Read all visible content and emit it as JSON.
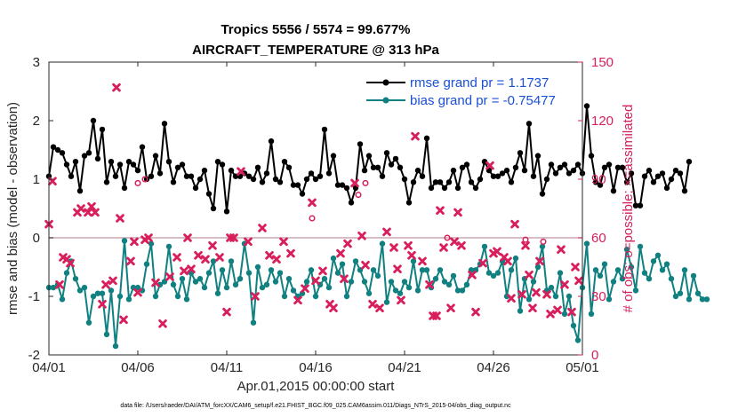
{
  "chart_data": {
    "type": "line",
    "title_line1": "Tropics 5556 / 5574 = 99.677%",
    "title_line2": "AIRCRAFT_TEMPERATURE @ 313 hPa",
    "xlabel": "Apr.01,2015 00:00:00 start",
    "ylabel_left": "rmse and bias (model - observation)",
    "ylabel_right": "# of obs: o=possible; ×=assimilated",
    "footer": "data file: /Users/raeder/DAI/ATM_forcXX/CAM6_setup/f.e21.FHIST_BGC.f09_025.CAM6assim.011/Diags_NTrS_2015-04/obs_diag_output.nc",
    "xlim": [
      0,
      30
    ],
    "ylim_left": [
      -2,
      3
    ],
    "ylim_right": [
      0,
      150
    ],
    "x_ticks": [
      0,
      5,
      10,
      15,
      20,
      25,
      30
    ],
    "x_tick_labels": [
      "04/01",
      "04/06",
      "04/11",
      "04/16",
      "04/21",
      "04/26",
      "05/01"
    ],
    "y_ticks_left": [
      -2,
      -1,
      0,
      1,
      2,
      3
    ],
    "y_tick_labels_left": [
      "-2",
      "-1",
      "0",
      "1",
      "2",
      "3"
    ],
    "y_ticks_right": [
      0,
      30,
      60,
      90,
      120,
      150
    ],
    "y_tick_labels_right": [
      "0",
      "30",
      "60",
      "90",
      "120",
      "150"
    ],
    "zero_line": 0,
    "legend": [
      {
        "label": "rmse grand pr = 1.1737",
        "color": "#000000"
      },
      {
        "label": "bias grand pr = -0.75477",
        "color": "#108080"
      }
    ],
    "colors": {
      "rmse": "#000000",
      "bias": "#108080",
      "obs": "#d81e5b",
      "zero": "#c8a8b0"
    },
    "x_step": 0.25,
    "series": [
      {
        "name": "rmse",
        "values": [
          1.05,
          1.55,
          1.5,
          1.45,
          1.25,
          1.05,
          1.3,
          0.8,
          1.4,
          1.45,
          2.0,
          1.35,
          1.85,
          0.95,
          1.3,
          1.05,
          1.25,
          0.85,
          1.3,
          1.25,
          1.15,
          1.55,
          1.0,
          1.05,
          1.4,
          1.1,
          1.95,
          1.3,
          0.95,
          1.2,
          1.25,
          1.05,
          1.05,
          0.85,
          1.0,
          1.15,
          0.75,
          0.5,
          1.3,
          1.25,
          0.45,
          1.15,
          1.05,
          1.05,
          1.1,
          1.05,
          1.0,
          1.2,
          0.95,
          1.1,
          1.65,
          1.0,
          0.95,
          1.3,
          1.2,
          0.9,
          0.9,
          0.75,
          1.0,
          1.1,
          1.0,
          1.05,
          1.85,
          1.1,
          1.4,
          0.9,
          0.9,
          0.85,
          0.6,
          0.85,
          1.6,
          1.15,
          1.4,
          1.2,
          1.2,
          1.05,
          1.45,
          1.25,
          1.35,
          1.2,
          1.0,
          0.6,
          0.95,
          1.15,
          1.05,
          1.7,
          0.85,
          0.95,
          0.95,
          0.85,
          0.95,
          1.15,
          0.85,
          1.2,
          1.25,
          0.95,
          0.85,
          1.0,
          1.3,
          1.15,
          1.05,
          1.05,
          1.1,
          1.15,
          0.95,
          1.2,
          1.45,
          1.15,
          1.95,
          1.05,
          1.4,
          0.75,
          1.0,
          1.25,
          1.1,
          1.2,
          1.25,
          1.1,
          1.15,
          1.25,
          1.1,
          2.25,
          1.4,
          0.95,
          0.9,
          1.2,
          1.25,
          0.8,
          1.2,
          1.2,
          0.95,
          1.1,
          0.55,
          0.55,
          1.05,
          1.15,
          0.95,
          1.05,
          1.1,
          0.85,
          1.0,
          1.15,
          1.1,
          0.8,
          1.3
        ]
      },
      {
        "name": "bias",
        "values": [
          -0.85,
          -0.85,
          -0.8,
          -1.05,
          -0.6,
          -0.4,
          -0.7,
          -0.9,
          -0.85,
          -1.45,
          -1.0,
          -0.95,
          -0.95,
          -1.65,
          -0.9,
          -1.85,
          -1.0,
          -0.05,
          -1.05,
          -0.85,
          -0.85,
          -0.9,
          -0.45,
          -0.1,
          -1.0,
          -0.8,
          -0.75,
          -0.15,
          -0.8,
          -1.0,
          -0.7,
          -1.05,
          -0.6,
          -0.75,
          -0.7,
          -0.85,
          -0.6,
          -0.4,
          -0.95,
          -0.55,
          -0.85,
          -0.4,
          -0.8,
          -0.7,
          -0.1,
          -0.6,
          -1.45,
          -0.5,
          -0.85,
          -0.8,
          -0.55,
          -0.75,
          -0.6,
          -1.0,
          -0.7,
          -0.9,
          -1.0,
          -0.95,
          -0.75,
          -0.55,
          -1.0,
          -0.8,
          -0.7,
          -0.85,
          -0.35,
          -0.6,
          -0.45,
          -1.0,
          -0.75,
          -0.4,
          -0.55,
          -0.75,
          -0.95,
          -0.55,
          -0.65,
          -0.1,
          -1.1,
          -0.75,
          -0.9,
          -0.95,
          -0.75,
          -0.85,
          -0.4,
          -0.9,
          -0.55,
          -0.55,
          -0.85,
          -0.7,
          -0.55,
          -0.75,
          -0.8,
          -0.65,
          -0.9,
          -0.9,
          -0.8,
          -0.55,
          -0.55,
          -0.45,
          -0.15,
          -0.6,
          -0.65,
          -0.6,
          -0.4,
          -1.0,
          -0.55,
          -0.35,
          -1.25,
          -0.7,
          -1.05,
          -0.75,
          -0.5,
          -0.15,
          -0.9,
          -0.85,
          -1.0,
          -0.6,
          -1.3,
          -1.0,
          -1.5,
          -1.75,
          -0.85,
          -0.1,
          -1.3,
          -0.55,
          -0.65,
          -0.45,
          -1.05,
          -0.75,
          -0.55,
          -0.7,
          -0.2,
          -0.5,
          -0.9,
          -0.15,
          -0.6,
          -0.7,
          -0.4,
          -0.3,
          -0.55,
          -0.45,
          -0.7,
          -1.0,
          -0.95,
          -0.55,
          -1.05,
          -0.65,
          -0.95,
          -1.05,
          -1.05
        ]
      }
    ],
    "obs_assimilated": [
      [
        0.0,
        67
      ],
      [
        0.2,
        89
      ],
      [
        0.6,
        36
      ],
      [
        0.8,
        50
      ],
      [
        1.0,
        49
      ],
      [
        1.2,
        47
      ],
      [
        1.6,
        73
      ],
      [
        1.8,
        75
      ],
      [
        2.2,
        73
      ],
      [
        2.4,
        76
      ],
      [
        2.6,
        73
      ],
      [
        3.0,
        26
      ],
      [
        3.2,
        36
      ],
      [
        3.6,
        38
      ],
      [
        3.8,
        137
      ],
      [
        4.0,
        70
      ],
      [
        4.2,
        18
      ],
      [
        4.6,
        48
      ],
      [
        4.8,
        58
      ],
      [
        5.0,
        32
      ],
      [
        5.4,
        59
      ],
      [
        5.6,
        60
      ],
      [
        6.0,
        37
      ],
      [
        6.4,
        16
      ],
      [
        6.8,
        40
      ],
      [
        7.2,
        50
      ],
      [
        7.6,
        43
      ],
      [
        7.8,
        60
      ],
      [
        8.0,
        44
      ],
      [
        8.4,
        51
      ],
      [
        8.8,
        49
      ],
      [
        9.2,
        56
      ],
      [
        9.6,
        50
      ],
      [
        10.0,
        22
      ],
      [
        10.2,
        60
      ],
      [
        10.4,
        60
      ],
      [
        10.8,
        94
      ],
      [
        11.2,
        58
      ],
      [
        11.6,
        30
      ],
      [
        12.0,
        65
      ],
      [
        12.4,
        51
      ],
      [
        12.8,
        49
      ],
      [
        13.2,
        58
      ],
      [
        13.6,
        52
      ],
      [
        14.0,
        28
      ],
      [
        14.4,
        34
      ],
      [
        14.8,
        78
      ],
      [
        15.0,
        38
      ],
      [
        15.4,
        43
      ],
      [
        15.8,
        26
      ],
      [
        16.0,
        24
      ],
      [
        16.4,
        52
      ],
      [
        16.6,
        39
      ],
      [
        16.8,
        57
      ],
      [
        17.2,
        88
      ],
      [
        17.6,
        61
      ],
      [
        17.8,
        46
      ],
      [
        18.2,
        26
      ],
      [
        18.6,
        24
      ],
      [
        19.0,
        63
      ],
      [
        19.4,
        55
      ],
      [
        19.6,
        44
      ],
      [
        19.8,
        28
      ],
      [
        20.2,
        56
      ],
      [
        20.4,
        51
      ],
      [
        20.6,
        112
      ],
      [
        21.0,
        48
      ],
      [
        21.4,
        36
      ],
      [
        21.6,
        20
      ],
      [
        21.8,
        20
      ],
      [
        22.0,
        74
      ],
      [
        22.2,
        55
      ],
      [
        22.6,
        24
      ],
      [
        22.8,
        58
      ],
      [
        23.0,
        73
      ],
      [
        23.2,
        56
      ],
      [
        23.8,
        41
      ],
      [
        24.0,
        22
      ],
      [
        24.4,
        47
      ],
      [
        24.8,
        97
      ],
      [
        25.0,
        52
      ],
      [
        25.2,
        53
      ],
      [
        25.6,
        50
      ],
      [
        25.8,
        48
      ],
      [
        26.0,
        29
      ],
      [
        26.2,
        67
      ],
      [
        26.6,
        31
      ],
      [
        26.8,
        56
      ],
      [
        27.0,
        41
      ],
      [
        27.2,
        24
      ],
      [
        27.4,
        32
      ],
      [
        27.6,
        48
      ],
      [
        28.0,
        31
      ],
      [
        28.2,
        21
      ],
      [
        28.6,
        23
      ],
      [
        28.8,
        54
      ],
      [
        29.0,
        36
      ],
      [
        29.4,
        22
      ],
      [
        29.6,
        45
      ],
      [
        29.8,
        38
      ]
    ],
    "obs_possible": [
      [
        5.0,
        88
      ],
      [
        5.4,
        90
      ],
      [
        17.8,
        88
      ],
      [
        17.4,
        82
      ],
      [
        14.8,
        70
      ],
      [
        22.4,
        60
      ],
      [
        26.8,
        59
      ],
      [
        27.8,
        58
      ]
    ]
  }
}
